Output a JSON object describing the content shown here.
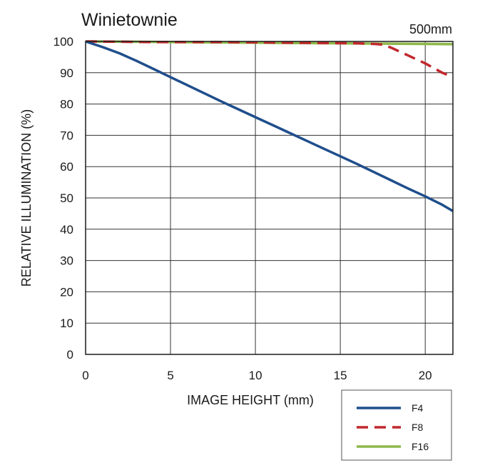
{
  "chart_data": {
    "type": "line",
    "title": "Winietownie",
    "subtitle": "500mm",
    "xlabel": "IMAGE HEIGHT (mm)",
    "ylabel": "RELATIVE ILLUMINATION (%)",
    "xlim": [
      0,
      21.63
    ],
    "ylim": [
      0,
      100
    ],
    "xticks": [
      0,
      5,
      10,
      15,
      20
    ],
    "yticks": [
      0,
      10,
      20,
      30,
      40,
      50,
      60,
      70,
      80,
      90,
      100
    ],
    "grid": true,
    "legend_position": "bottom-right",
    "series": [
      {
        "name": "F4",
        "color": "#1f4e8c",
        "dash": "solid",
        "x": [
          0,
          1,
          2,
          3,
          4,
          5,
          6,
          7,
          8,
          9,
          10,
          11,
          12,
          13,
          14,
          15,
          16,
          17,
          18,
          19,
          20,
          21,
          21.63
        ],
        "y": [
          100,
          98.2,
          96.2,
          93.8,
          91.2,
          88.6,
          86.0,
          83.4,
          80.8,
          78.3,
          75.8,
          73.3,
          70.8,
          68.3,
          65.8,
          63.3,
          60.8,
          58.2,
          55.6,
          53.0,
          50.5,
          47.8,
          45.8
        ]
      },
      {
        "name": "F8",
        "color": "#c0282d",
        "dash": "dashed",
        "x": [
          0,
          2,
          4,
          6,
          8,
          10,
          12,
          14,
          16,
          17,
          17.5,
          18,
          19,
          20,
          21,
          21.63
        ],
        "y": [
          100,
          99.9,
          99.8,
          99.8,
          99.8,
          99.7,
          99.6,
          99.5,
          99.4,
          99.2,
          99.0,
          98.0,
          95.5,
          93.0,
          90.0,
          88.6
        ]
      },
      {
        "name": "F16",
        "color": "#8db84a",
        "dash": "solid",
        "x": [
          0,
          5,
          10,
          15,
          20,
          21.63
        ],
        "y": [
          100,
          99.8,
          99.6,
          99.4,
          99.2,
          99.1
        ]
      }
    ]
  }
}
